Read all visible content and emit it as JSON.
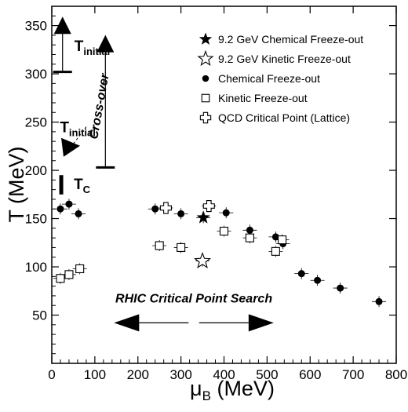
{
  "chart_data": {
    "type": "scatter",
    "xlabel": "μB (MeV)",
    "xlabel_main": "μ",
    "xlabel_sub": "B",
    "xlabel_unit": " (MeV)",
    "ylabel": "T (MeV)",
    "xlim": [
      0,
      800
    ],
    "ylim": [
      0,
      370
    ],
    "x_ticks": [
      0,
      100,
      200,
      300,
      400,
      500,
      600,
      700,
      800
    ],
    "y_ticks": [
      50,
      100,
      150,
      200,
      250,
      300,
      350
    ],
    "grid": false,
    "legend_position": "top-right",
    "legend": [
      {
        "label": "9.2 GeV Chemical Freeze-out",
        "marker": "filled-star"
      },
      {
        "label": "9.2 GeV Kinetic Freeze-out",
        "marker": "open-star"
      },
      {
        "label": "Chemical Freeze-out",
        "marker": "filled-circle"
      },
      {
        "label": "Kinetic Freeze-out",
        "marker": "open-square"
      },
      {
        "label": "QCD Critical Point (Lattice)",
        "marker": "open-cross"
      }
    ],
    "series": [
      {
        "name": "Chemical Freeze-out",
        "marker": "filled-circle",
        "points": [
          {
            "x": 20,
            "y": 160
          },
          {
            "x": 40,
            "y": 165
          },
          {
            "x": 62,
            "y": 155
          },
          {
            "x": 240,
            "y": 160
          },
          {
            "x": 300,
            "y": 155
          },
          {
            "x": 405,
            "y": 156
          },
          {
            "x": 460,
            "y": 138
          },
          {
            "x": 520,
            "y": 131
          },
          {
            "x": 537,
            "y": 124
          },
          {
            "x": 580,
            "y": 93
          },
          {
            "x": 617,
            "y": 86
          },
          {
            "x": 670,
            "y": 78
          },
          {
            "x": 760,
            "y": 64
          }
        ]
      },
      {
        "name": "Kinetic Freeze-out",
        "marker": "open-square",
        "points": [
          {
            "x": 20,
            "y": 88
          },
          {
            "x": 40,
            "y": 92
          },
          {
            "x": 65,
            "y": 98
          },
          {
            "x": 250,
            "y": 122
          },
          {
            "x": 300,
            "y": 120
          },
          {
            "x": 400,
            "y": 137
          },
          {
            "x": 460,
            "y": 130
          },
          {
            "x": 520,
            "y": 116
          },
          {
            "x": 535,
            "y": 128
          }
        ]
      },
      {
        "name": "QCD Critical Point (Lattice)",
        "marker": "open-cross",
        "points": [
          {
            "x": 265,
            "y": 161
          },
          {
            "x": 365,
            "y": 163
          }
        ]
      },
      {
        "name": "9.2 GeV Chemical Freeze-out",
        "marker": "filled-star",
        "points": [
          {
            "x": 352,
            "y": 151
          }
        ]
      },
      {
        "name": "9.2 GeV Kinetic Freeze-out",
        "marker": "open-star",
        "points": [
          {
            "x": 350,
            "y": 106
          }
        ]
      }
    ],
    "annotations": {
      "t_initial_left": {
        "label_main": "T",
        "label_sub": "initial",
        "x": 25,
        "y_from": 302,
        "y_to": 356
      },
      "t_initial_mid": {
        "label_main": "T",
        "label_sub": "initial",
        "x": 345,
        "y_from": 203,
        "y_to": 337
      },
      "tc": {
        "label_main": "T",
        "label_sub": "C",
        "x": 22,
        "y_from": 175,
        "y_to": 195
      },
      "crossover": {
        "label": "Cross-over",
        "y_from": 250,
        "y_to": 210
      },
      "rhic": {
        "label": "RHIC Critical Point Search",
        "x_from": 150,
        "x_to": 530,
        "y": 42
      }
    }
  }
}
